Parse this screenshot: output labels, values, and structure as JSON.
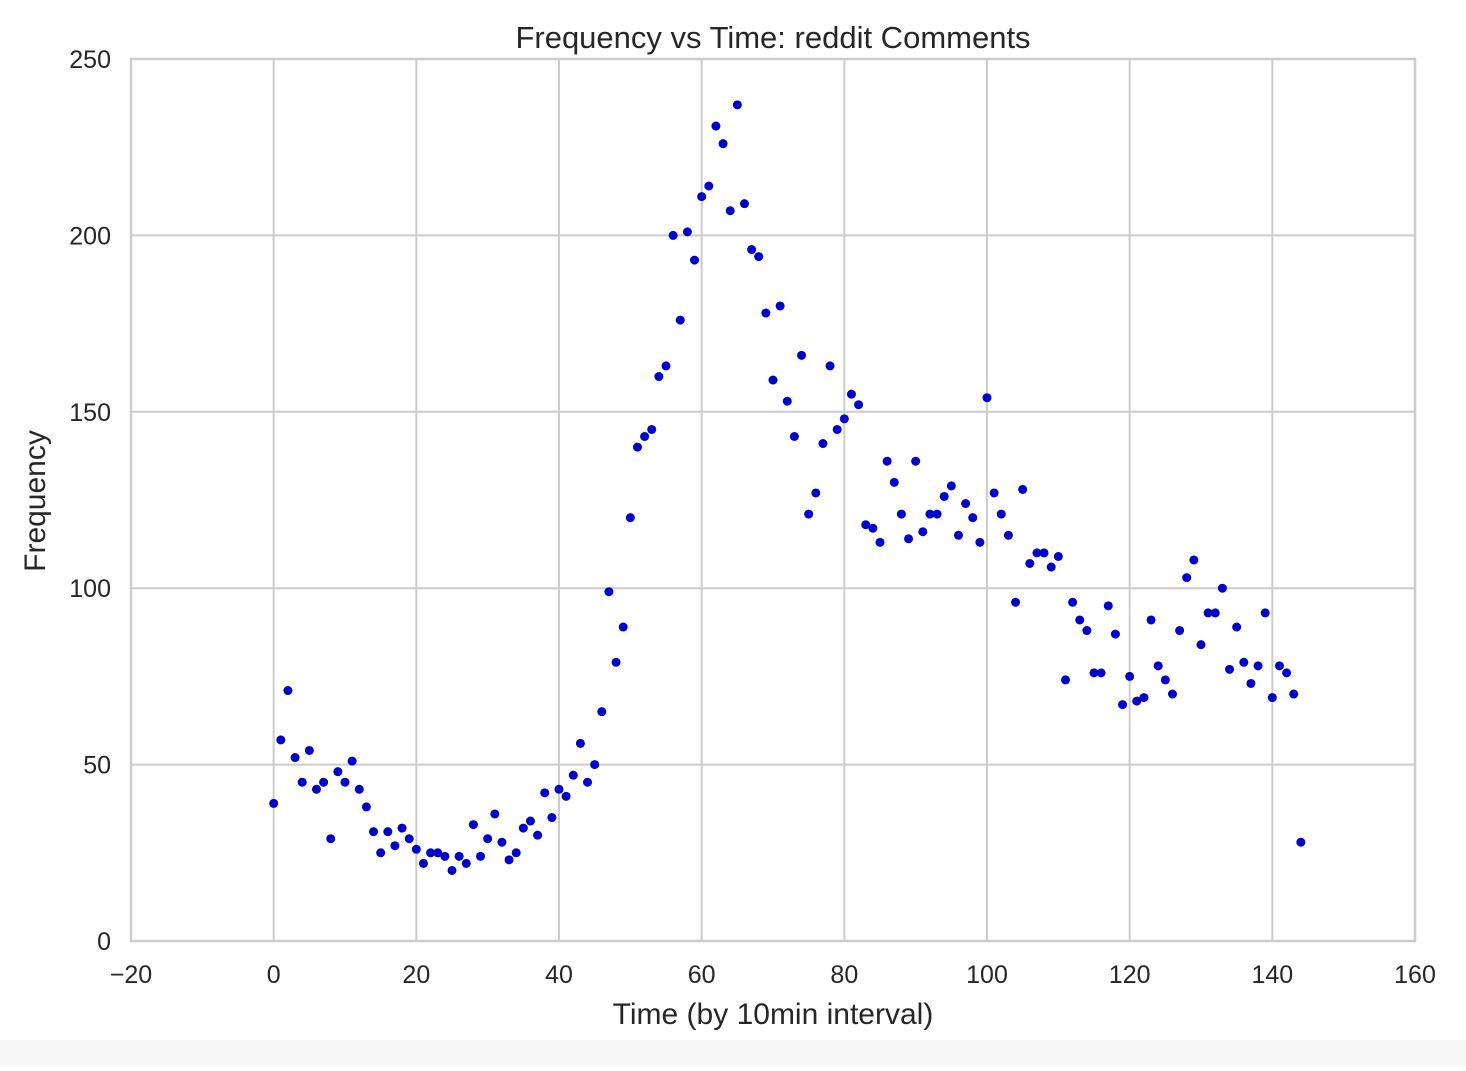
{
  "chart_data": {
    "type": "scatter",
    "title": "Frequency vs Time: reddit Comments",
    "xlabel": "Time (by 10min interval)",
    "ylabel": "Frequency",
    "xlim": [
      -20,
      160
    ],
    "ylim": [
      0,
      250
    ],
    "xticks": [
      -20,
      0,
      20,
      40,
      60,
      80,
      100,
      120,
      140,
      160
    ],
    "yticks": [
      0,
      50,
      100,
      150,
      200,
      250
    ],
    "xtick_labels": [
      "−20",
      "0",
      "20",
      "40",
      "60",
      "80",
      "100",
      "120",
      "140",
      "160"
    ],
    "ytick_labels": [
      "0",
      "50",
      "100",
      "150",
      "200",
      "250"
    ],
    "grid": true,
    "marker_color": "#0000cc",
    "x": [
      0,
      1,
      2,
      3,
      4,
      5,
      6,
      7,
      8,
      9,
      10,
      11,
      12,
      13,
      14,
      15,
      16,
      17,
      18,
      19,
      20,
      21,
      22,
      23,
      24,
      25,
      26,
      27,
      28,
      29,
      30,
      31,
      32,
      33,
      34,
      35,
      36,
      37,
      38,
      39,
      40,
      41,
      42,
      43,
      44,
      45,
      46,
      47,
      48,
      49,
      50,
      51,
      52,
      53,
      54,
      55,
      56,
      57,
      58,
      59,
      60,
      61,
      62,
      63,
      64,
      65,
      66,
      67,
      68,
      69,
      70,
      71,
      72,
      73,
      74,
      75,
      76,
      77,
      78,
      79,
      80,
      81,
      82,
      83,
      84,
      85,
      86,
      87,
      88,
      89,
      90,
      91,
      92,
      93,
      94,
      95,
      96,
      97,
      98,
      99,
      100,
      101,
      102,
      103,
      104,
      105,
      106,
      107,
      108,
      109,
      110,
      111,
      112,
      113,
      114,
      115,
      116,
      117,
      118,
      119,
      120,
      121,
      122,
      123,
      124,
      125,
      126,
      127,
      128,
      129,
      130,
      131,
      132,
      133,
      134,
      135,
      136,
      137,
      138,
      139,
      140,
      141,
      142,
      143,
      144
    ],
    "y": [
      39,
      57,
      71,
      52,
      45,
      54,
      43,
      45,
      29,
      48,
      45,
      51,
      43,
      38,
      31,
      25,
      31,
      27,
      32,
      29,
      26,
      22,
      25,
      25,
      24,
      20,
      24,
      22,
      33,
      24,
      29,
      36,
      28,
      23,
      25,
      32,
      34,
      30,
      42,
      35,
      43,
      41,
      47,
      56,
      45,
      50,
      65,
      99,
      79,
      89,
      120,
      140,
      143,
      145,
      160,
      163,
      200,
      176,
      201,
      193,
      211,
      214,
      231,
      226,
      207,
      237,
      209,
      196,
      194,
      178,
      159,
      180,
      153,
      143,
      166,
      121,
      127,
      141,
      163,
      145,
      148,
      155,
      152,
      118,
      117,
      113,
      136,
      130,
      121,
      114,
      136,
      116,
      121,
      121,
      126,
      129,
      115,
      124,
      120,
      113,
      154,
      127,
      121,
      115,
      96,
      128,
      107,
      110,
      110,
      106,
      109,
      74,
      96,
      91,
      88,
      76,
      76,
      95,
      87,
      67,
      75,
      68,
      69,
      91,
      78,
      74,
      70,
      88,
      103,
      108,
      84,
      93,
      93,
      100,
      77,
      89,
      79,
      73,
      78,
      93,
      69,
      78,
      76,
      70,
      28
    ]
  }
}
